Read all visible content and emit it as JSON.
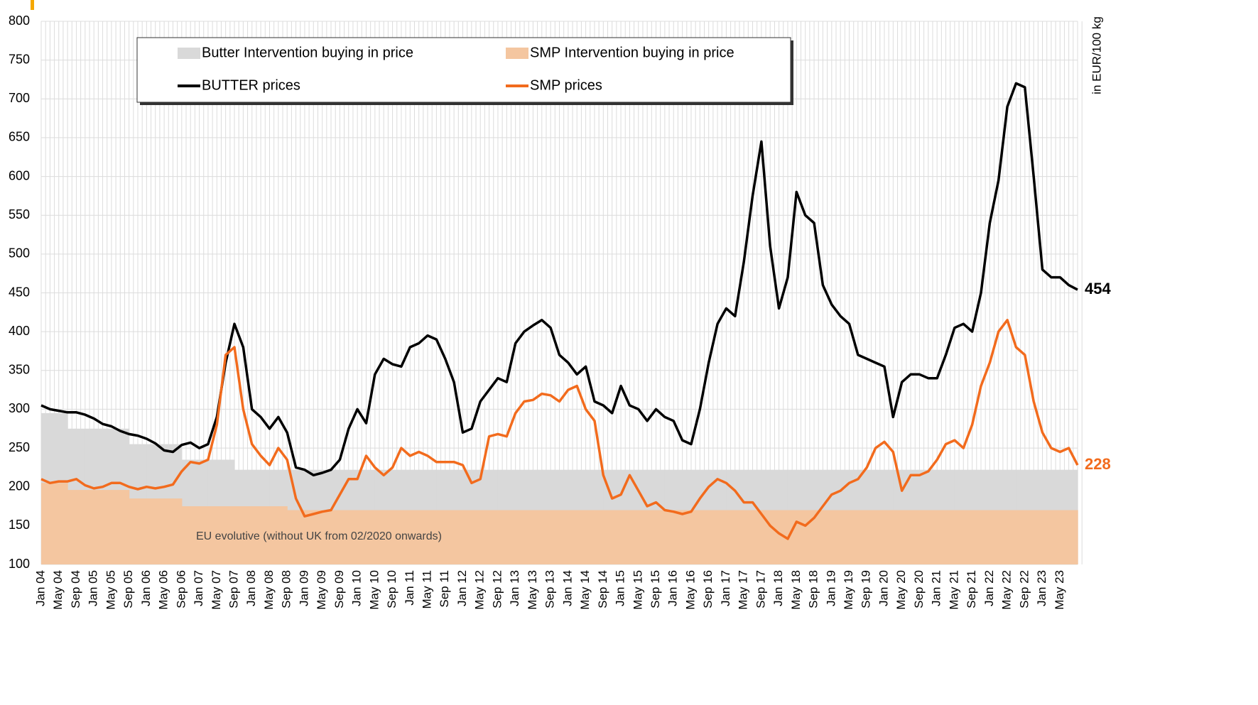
{
  "chart_data": {
    "type": "line",
    "y_label": "in EUR/100 kg",
    "annotation": "EU evolutive (without UK from 02/2020 onwards)",
    "categories": [
      "Jan 04",
      null,
      "May 04",
      null,
      "Sep 04",
      null,
      "Jan 05",
      null,
      "May 05",
      null,
      "Sep 05",
      null,
      "Jan 06",
      null,
      "May 06",
      null,
      "Sep 06",
      null,
      "Jan 07",
      null,
      "May 07",
      null,
      "Sep 07",
      null,
      "Jan 08",
      null,
      "May 08",
      null,
      "Sep 08",
      null,
      "Jan 09",
      null,
      "May 09",
      null,
      "Sep 09",
      null,
      "Jan 10",
      null,
      "May 10",
      null,
      "Sep 10",
      null,
      "Jan 11",
      null,
      "May 11",
      null,
      "Sep 11",
      null,
      "Jan 12",
      null,
      "May 12",
      null,
      "Sep 12",
      null,
      "Jan 13",
      null,
      "May 13",
      null,
      "Sep 13",
      null,
      "Jan 14",
      null,
      "May 14",
      null,
      "Sep 14",
      null,
      "Jan 15",
      null,
      "May 15",
      null,
      "Sep 15",
      null,
      "Jan 16",
      null,
      "May 16",
      null,
      "Sep 16",
      null,
      "Jan 17",
      null,
      "May 17",
      null,
      "Sep 17",
      null,
      "Jan 18",
      null,
      "May 18",
      null,
      "Sep 18",
      null,
      "Jan 19",
      null,
      "May 19",
      null,
      "Sep 19",
      null,
      "Jan 20",
      null,
      "May 20",
      null,
      "Sep 20",
      null,
      "Jan 21",
      null,
      "May 21",
      null,
      "Sep 21",
      null,
      "Jan 22",
      null,
      "May 22",
      null,
      "Sep 22",
      null,
      "Jan 23",
      null,
      "May 23",
      null,
      null
    ],
    "series": [
      {
        "name": "Butter Intervention buying in price",
        "kind": "area",
        "color": "#d9d9d9",
        "values": [
          295,
          295,
          295,
          275,
          275,
          275,
          275,
          275,
          275,
          275,
          255,
          255,
          255,
          255,
          255,
          255,
          235,
          235,
          235,
          235,
          235,
          235,
          222,
          222,
          222,
          222,
          222,
          222,
          222,
          222,
          222,
          222,
          222,
          222,
          222,
          222,
          222,
          222,
          222,
          222,
          222,
          222,
          222,
          222,
          222,
          222,
          222,
          222,
          222,
          222,
          222,
          222,
          222,
          222,
          222,
          222,
          222,
          222,
          222,
          222,
          222,
          222,
          222,
          222,
          222,
          222,
          222,
          222,
          222,
          222,
          222,
          222,
          222,
          222,
          222,
          222,
          222,
          222,
          222,
          222,
          222,
          222,
          222,
          222,
          222,
          222,
          222,
          222,
          222,
          222,
          222,
          222,
          222,
          222,
          222,
          222,
          222,
          222,
          222,
          222,
          222,
          222,
          222,
          222,
          222,
          222,
          222,
          222,
          222,
          222,
          222,
          222,
          222,
          222,
          222,
          222,
          222,
          222,
          222
        ]
      },
      {
        "name": "SMP Intervention buying in price",
        "kind": "area",
        "color": "#f4c6a0",
        "values": [
          205,
          205,
          205,
          196,
          196,
          196,
          196,
          196,
          196,
          196,
          185,
          185,
          185,
          185,
          185,
          185,
          175,
          175,
          175,
          175,
          175,
          175,
          175,
          175,
          175,
          175,
          175,
          175,
          170,
          170,
          170,
          170,
          170,
          170,
          170,
          170,
          170,
          170,
          170,
          170,
          170,
          170,
          170,
          170,
          170,
          170,
          170,
          170,
          170,
          170,
          170,
          170,
          170,
          170,
          170,
          170,
          170,
          170,
          170,
          170,
          170,
          170,
          170,
          170,
          170,
          170,
          170,
          170,
          170,
          170,
          170,
          170,
          170,
          170,
          170,
          170,
          170,
          170,
          170,
          170,
          170,
          170,
          170,
          170,
          170,
          170,
          170,
          170,
          170,
          170,
          170,
          170,
          170,
          170,
          170,
          170,
          170,
          170,
          170,
          170,
          170,
          170,
          170,
          170,
          170,
          170,
          170,
          170,
          170,
          170,
          170,
          170,
          170,
          170,
          170,
          170,
          170,
          170,
          170
        ]
      },
      {
        "name": "BUTTER prices",
        "kind": "line",
        "color": "#000000",
        "end_label": "454",
        "values": [
          305,
          300,
          298,
          296,
          296,
          293,
          288,
          281,
          278,
          272,
          268,
          266,
          262,
          256,
          247,
          245,
          254,
          257,
          250,
          255,
          290,
          360,
          410,
          380,
          300,
          290,
          275,
          290,
          270,
          225,
          222,
          215,
          218,
          222,
          235,
          275,
          300,
          282,
          345,
          365,
          358,
          355,
          380,
          385,
          395,
          390,
          365,
          335,
          270,
          275,
          310,
          325,
          340,
          335,
          385,
          400,
          408,
          415,
          405,
          370,
          360,
          345,
          355,
          310,
          305,
          295,
          330,
          305,
          300,
          285,
          300,
          290,
          285,
          260,
          255,
          300,
          360,
          410,
          430,
          420,
          490,
          575,
          645,
          510,
          430,
          470,
          580,
          550,
          540,
          460,
          435,
          420,
          410,
          370,
          365,
          360,
          355,
          290,
          335,
          345,
          345,
          340,
          340,
          370,
          405,
          410,
          400,
          450,
          540,
          595,
          690,
          720,
          715,
          600,
          480,
          470,
          470,
          460,
          454
        ]
      },
      {
        "name": "SMP prices",
        "kind": "line",
        "color": "#f26b1d",
        "end_label": "228",
        "values": [
          210,
          205,
          207,
          207,
          210,
          202,
          198,
          200,
          205,
          205,
          200,
          197,
          200,
          198,
          200,
          203,
          220,
          232,
          230,
          235,
          280,
          370,
          380,
          300,
          255,
          240,
          228,
          250,
          235,
          185,
          162,
          165,
          168,
          170,
          190,
          210,
          210,
          240,
          225,
          215,
          225,
          250,
          240,
          245,
          240,
          232,
          232,
          232,
          228,
          205,
          210,
          265,
          268,
          265,
          295,
          310,
          312,
          320,
          318,
          310,
          325,
          330,
          300,
          285,
          215,
          185,
          190,
          215,
          195,
          175,
          180,
          170,
          168,
          165,
          168,
          185,
          200,
          210,
          205,
          195,
          180,
          180,
          165,
          150,
          140,
          133,
          155,
          150,
          160,
          175,
          190,
          195,
          205,
          210,
          225,
          250,
          258,
          245,
          195,
          215,
          215,
          220,
          235,
          255,
          260,
          250,
          280,
          330,
          360,
          400,
          415,
          380,
          370,
          310,
          270,
          250,
          245,
          250,
          228
        ]
      }
    ],
    "ylim": [
      100,
      800
    ],
    "yticks": [
      100,
      150,
      200,
      250,
      300,
      350,
      400,
      450,
      500,
      550,
      600,
      650,
      700,
      750,
      800
    ],
    "grid": true
  }
}
